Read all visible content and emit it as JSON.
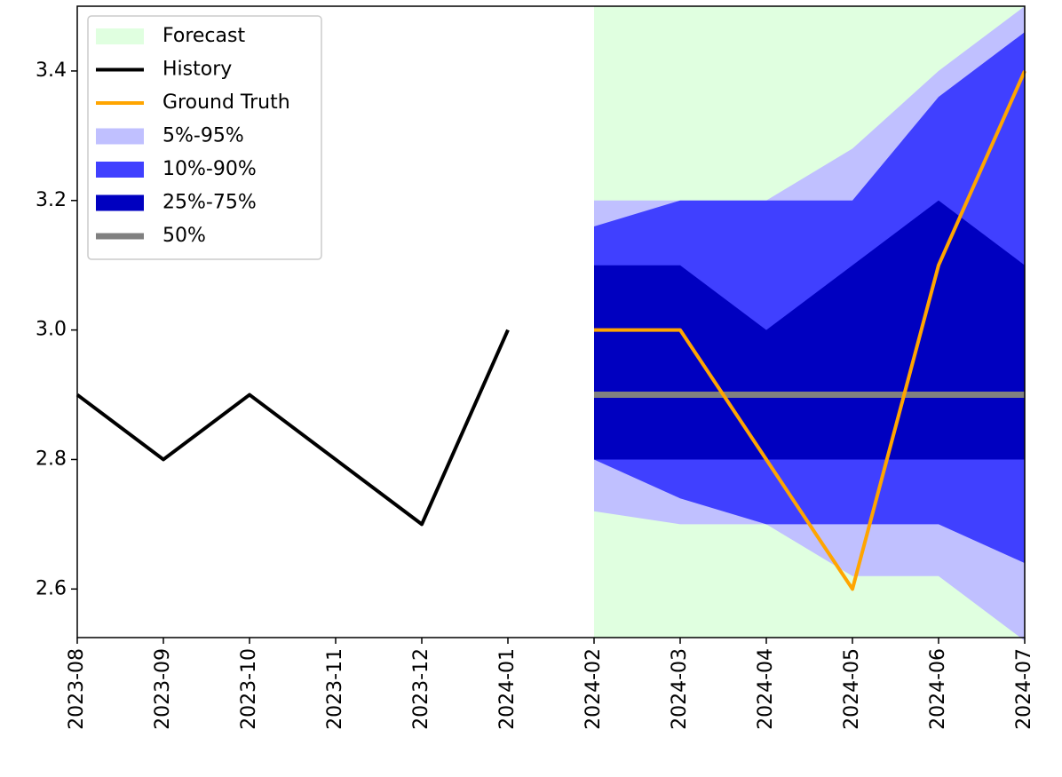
{
  "chart_data": {
    "type": "line",
    "categories": [
      "2023-08",
      "2023-09",
      "2023-10",
      "2023-11",
      "2023-12",
      "2024-01",
      "2024-02",
      "2024-03",
      "2024-04",
      "2024-05",
      "2024-06",
      "2024-07"
    ],
    "ylim": [
      2.525,
      3.5
    ],
    "yticks": [
      2.6,
      2.8,
      {
        "value": 3,
        "label": "3.0"
      },
      3.2,
      3.4
    ],
    "legend": "upper left",
    "forecast": {
      "name": "Forecast",
      "color": "#e0ffe0",
      "start": "2024-02",
      "end": "2024-07"
    },
    "bands": [
      {
        "name": "5%-95%",
        "color": "#c0c0ff",
        "lower": [
          null,
          null,
          null,
          null,
          null,
          null,
          2.72,
          2.7,
          2.7,
          2.62,
          2.62,
          2.52
        ],
        "upper": [
          null,
          null,
          null,
          null,
          null,
          null,
          3.2,
          3.2,
          3.2,
          3.28,
          3.4,
          3.5
        ]
      },
      {
        "name": "10%-90%",
        "color": "#4040ff",
        "lower": [
          null,
          null,
          null,
          null,
          null,
          null,
          2.8,
          2.74,
          2.7,
          2.7,
          2.7,
          2.64
        ],
        "upper": [
          null,
          null,
          null,
          null,
          null,
          null,
          3.16,
          3.2,
          3.2,
          3.2,
          3.36,
          3.46
        ]
      },
      {
        "name": "25%-75%",
        "color": "#0000c0",
        "lower": [
          null,
          null,
          null,
          null,
          null,
          null,
          2.8,
          2.8,
          2.8,
          2.8,
          2.8,
          2.8
        ],
        "upper": [
          null,
          null,
          null,
          null,
          null,
          null,
          3.1,
          3.1,
          3.0,
          3.1,
          3.2,
          3.1
        ]
      }
    ],
    "series": [
      {
        "name": "History",
        "color": "#000000",
        "width": 4,
        "values": [
          2.9,
          2.8,
          2.9,
          2.8,
          2.7,
          3.0,
          null,
          null,
          null,
          null,
          null,
          null
        ]
      },
      {
        "name": "Ground Truth",
        "color": "#ffa500",
        "width": 4,
        "values": [
          null,
          null,
          null,
          null,
          null,
          null,
          3.0,
          3.0,
          2.8,
          2.6,
          3.1,
          3.4
        ]
      },
      {
        "name": "50%",
        "color": "#808080",
        "width": 7,
        "values": [
          null,
          null,
          null,
          null,
          null,
          null,
          2.9,
          2.9,
          2.9,
          2.9,
          2.9,
          2.9
        ]
      }
    ],
    "legend_order": [
      "forecast",
      "series.0",
      "series.1",
      "bands.0",
      "bands.1",
      "bands.2",
      "series.2"
    ]
  }
}
